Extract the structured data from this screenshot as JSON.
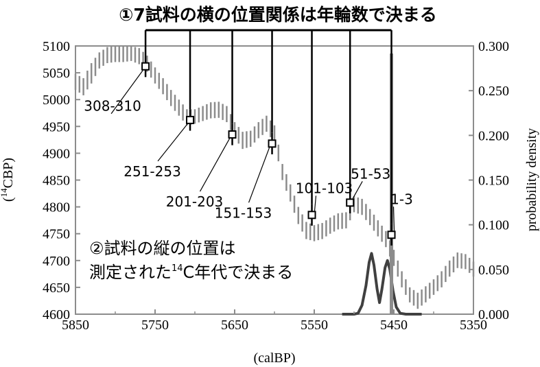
{
  "chart_data": {
    "type": "line",
    "xlabel": "(calBP)",
    "ylabel_left": "(¹⁴CBP)",
    "ylabel_right": "probability density",
    "x_range": [
      5850,
      5350
    ],
    "x_reversed": true,
    "x_ticks": [
      "5850",
      "5750",
      "5650",
      "5550",
      "5450",
      "5350"
    ],
    "y_left_range": [
      4600,
      5100
    ],
    "y_left_ticks": [
      "5100",
      "5050",
      "5000",
      "4950",
      "4900",
      "4850",
      "4800",
      "4750",
      "4700",
      "4650",
      "4600"
    ],
    "y_right_range": [
      0,
      0.3
    ],
    "y_right_ticks": [
      "0.300",
      "0.250",
      "0.200",
      "0.150",
      "0.100",
      "0.050",
      "0.000"
    ],
    "calibration_curve": {
      "color": "#8c8c8c",
      "points": [
        [
          5850,
          5048,
          5018
        ],
        [
          5840,
          5040,
          5008
        ],
        [
          5830,
          5068,
          5030
        ],
        [
          5820,
          5088,
          5058
        ],
        [
          5810,
          5098,
          5068
        ],
        [
          5800,
          5100,
          5070
        ],
        [
          5790,
          5100,
          5070
        ],
        [
          5780,
          5100,
          5072
        ],
        [
          5770,
          5096,
          5066
        ],
        [
          5760,
          5082,
          5052
        ],
        [
          5750,
          5060,
          5030
        ],
        [
          5740,
          5040,
          5010
        ],
        [
          5730,
          5018,
          4988
        ],
        [
          5720,
          5000,
          4970
        ],
        [
          5710,
          4982,
          4952
        ],
        [
          5700,
          4982,
          4955
        ],
        [
          5690,
          4988,
          4960
        ],
        [
          5680,
          4995,
          4965
        ],
        [
          5670,
          4996,
          4966
        ],
        [
          5660,
          4988,
          4958
        ],
        [
          5650,
          4958,
          4928
        ],
        [
          5640,
          4940,
          4908
        ],
        [
          5630,
          4942,
          4912
        ],
        [
          5620,
          4958,
          4928
        ],
        [
          5610,
          4970,
          4940
        ],
        [
          5600,
          4952,
          4920
        ],
        [
          5590,
          4880,
          4850
        ],
        [
          5580,
          4842,
          4810
        ],
        [
          5570,
          4800,
          4768
        ],
        [
          5560,
          4772,
          4740
        ],
        [
          5550,
          4766,
          4736
        ],
        [
          5540,
          4770,
          4740
        ],
        [
          5530,
          4780,
          4750
        ],
        [
          5520,
          4788,
          4758
        ],
        [
          5510,
          4790,
          4760
        ],
        [
          5500,
          4820,
          4790
        ],
        [
          5490,
          4815,
          4785
        ],
        [
          5480,
          4796,
          4766
        ],
        [
          5470,
          4775,
          4745
        ],
        [
          5460,
          4755,
          4725
        ],
        [
          5450,
          4720,
          4690
        ],
        [
          5440,
          4680,
          4650
        ],
        [
          5430,
          4650,
          4622
        ],
        [
          5420,
          4640,
          4610
        ],
        [
          5410,
          4652,
          4622
        ],
        [
          5400,
          4665,
          4636
        ],
        [
          5390,
          4680,
          4650
        ],
        [
          5380,
          4700,
          4670
        ],
        [
          5370,
          4715,
          4686
        ],
        [
          5360,
          4712,
          4684
        ],
        [
          5350,
          4698,
          4670
        ]
      ]
    },
    "samples": [
      {
        "label": "308-310",
        "x": 5762,
        "y": 5062,
        "err": 20
      },
      {
        "label": "251-253",
        "x": 5706,
        "y": 4962,
        "err": 20
      },
      {
        "label": "201-203",
        "x": 5653,
        "y": 4935,
        "err": 20
      },
      {
        "label": "151-153",
        "x": 5603,
        "y": 4918,
        "err": 20
      },
      {
        "label": "101-103",
        "x": 5553,
        "y": 4785,
        "err": 20
      },
      {
        "label": "51-53",
        "x": 5505,
        "y": 4808,
        "err": 20
      },
      {
        "label": "1-3",
        "x": 5453,
        "y": 4748,
        "err": 20
      }
    ],
    "best_fit_x": 5453,
    "probability_density": {
      "color": "#404040",
      "points": [
        [
          5515,
          0.0
        ],
        [
          5500,
          0.0
        ],
        [
          5495,
          0.001
        ],
        [
          5490,
          0.01
        ],
        [
          5485,
          0.032
        ],
        [
          5481,
          0.058
        ],
        [
          5478,
          0.068
        ],
        [
          5475,
          0.055
        ],
        [
          5471,
          0.028
        ],
        [
          5468,
          0.013
        ],
        [
          5465,
          0.028
        ],
        [
          5461,
          0.052
        ],
        [
          5458,
          0.06
        ],
        [
          5455,
          0.05
        ],
        [
          5451,
          0.026
        ],
        [
          5447,
          0.008
        ],
        [
          5442,
          0.001
        ],
        [
          5435,
          0.0
        ],
        [
          5415,
          0.0
        ]
      ]
    }
  },
  "annotations": {
    "top_note": "①7試料の横の位置関係は年輪数で決まる",
    "middle_note_line1": "②試料の縦の位置は",
    "middle_note_line2_prefix": "測定された",
    "middle_note_line2_super": "14",
    "middle_note_line2_suffix": "C年代で決まる"
  }
}
